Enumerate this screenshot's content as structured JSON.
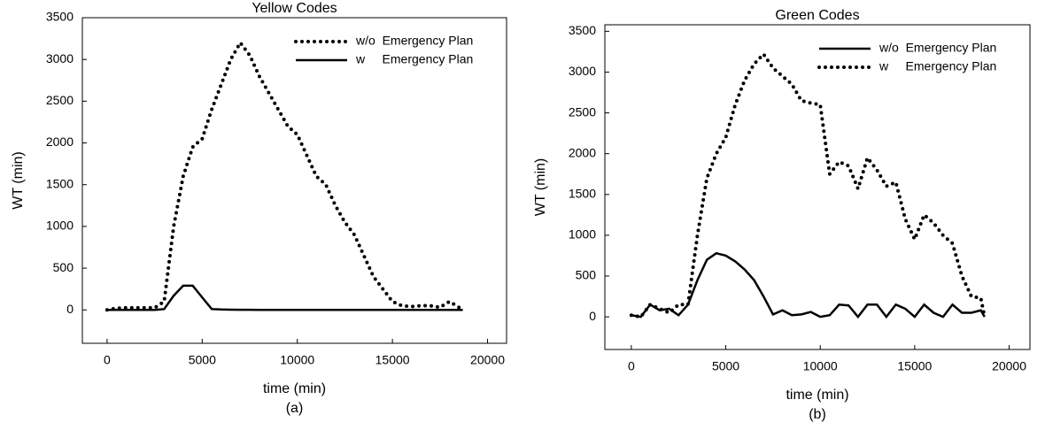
{
  "chart_data": [
    {
      "type": "line",
      "title": "Yellow Codes",
      "x_label": "time (min)",
      "y_label": "WT (min)",
      "caption": "(a)",
      "x": [
        0,
        500,
        1000,
        1500,
        2000,
        2500,
        3000,
        3500,
        4000,
        4500,
        5000,
        5500,
        6000,
        6500,
        7000,
        7500,
        8000,
        8500,
        9000,
        9500,
        10000,
        10500,
        11000,
        11500,
        12000,
        12500,
        13000,
        13500,
        14000,
        14500,
        15000,
        15500,
        16000,
        16500,
        17000,
        17500,
        18000,
        18500,
        18700
      ],
      "series": [
        {
          "name": "w/o  Emergency Plan",
          "color": "#000000",
          "line_style": "dotted",
          "values": [
            0,
            20,
            25,
            25,
            25,
            25,
            100,
            1000,
            1600,
            1950,
            2050,
            2400,
            2700,
            3000,
            3200,
            3050,
            2800,
            2600,
            2400,
            2200,
            2100,
            1850,
            1600,
            1500,
            1250,
            1050,
            900,
            650,
            400,
            250,
            100,
            50,
            40,
            50,
            50,
            30,
            100,
            30,
            20
          ]
        },
        {
          "name": "w     Emergency Plan",
          "color": "#000000",
          "line_style": "solid",
          "values": [
            0,
            0,
            0,
            0,
            0,
            0,
            10,
            170,
            290,
            290,
            150,
            10,
            5,
            3,
            2,
            1,
            0,
            0,
            0,
            0,
            0,
            0,
            0,
            0,
            0,
            0,
            0,
            0,
            0,
            0,
            0,
            0,
            0,
            0,
            0,
            0,
            0,
            0,
            0
          ]
        }
      ],
      "xlim": [
        -1300,
        21000
      ],
      "ylim": [
        -400,
        3500
      ],
      "xticks": [
        0,
        5000,
        10000,
        15000,
        20000
      ],
      "yticks": [
        0,
        500,
        1000,
        1500,
        2000,
        2500,
        3000,
        3500
      ],
      "legend": "upper right"
    },
    {
      "type": "line",
      "title": "Green Codes",
      "x_label": "time (min)",
      "y_label": "WT (min)",
      "caption": "(b)",
      "x": [
        0,
        500,
        1000,
        1500,
        2000,
        2500,
        3000,
        3500,
        4000,
        4500,
        5000,
        5500,
        6000,
        6500,
        7000,
        7500,
        8000,
        8500,
        9000,
        9500,
        10000,
        10500,
        11000,
        11500,
        12000,
        12500,
        13000,
        13500,
        14000,
        14500,
        15000,
        15500,
        16000,
        16500,
        17000,
        17500,
        18000,
        18500,
        18700
      ],
      "series": [
        {
          "name": "w/o  Emergency Plan",
          "color": "#000000",
          "line_style": "solid",
          "values": [
            20,
            0,
            150,
            80,
            100,
            20,
            150,
            450,
            700,
            780,
            750,
            680,
            580,
            450,
            250,
            30,
            80,
            20,
            30,
            60,
            0,
            20,
            150,
            140,
            0,
            150,
            150,
            0,
            150,
            100,
            0,
            150,
            50,
            0,
            150,
            50,
            50,
            80,
            0
          ]
        },
        {
          "name": "w     Emergency Plan",
          "color": "#000000",
          "line_style": "dotted",
          "values": [
            20,
            0,
            150,
            100,
            50,
            150,
            150,
            1000,
            1700,
            2000,
            2200,
            2600,
            2900,
            3100,
            3220,
            3050,
            2950,
            2850,
            2650,
            2620,
            2600,
            1750,
            1900,
            1850,
            1570,
            1950,
            1800,
            1600,
            1650,
            1200,
            950,
            1250,
            1150,
            1000,
            900,
            500,
            250,
            230,
            0
          ]
        }
      ],
      "xlim": [
        -1400,
        21100
      ],
      "ylim": [
        -400,
        3580
      ],
      "xticks": [
        0,
        5000,
        10000,
        15000,
        20000
      ],
      "yticks": [
        0,
        500,
        1000,
        1500,
        2000,
        2500,
        3000,
        3500
      ],
      "legend": "upper right"
    }
  ]
}
